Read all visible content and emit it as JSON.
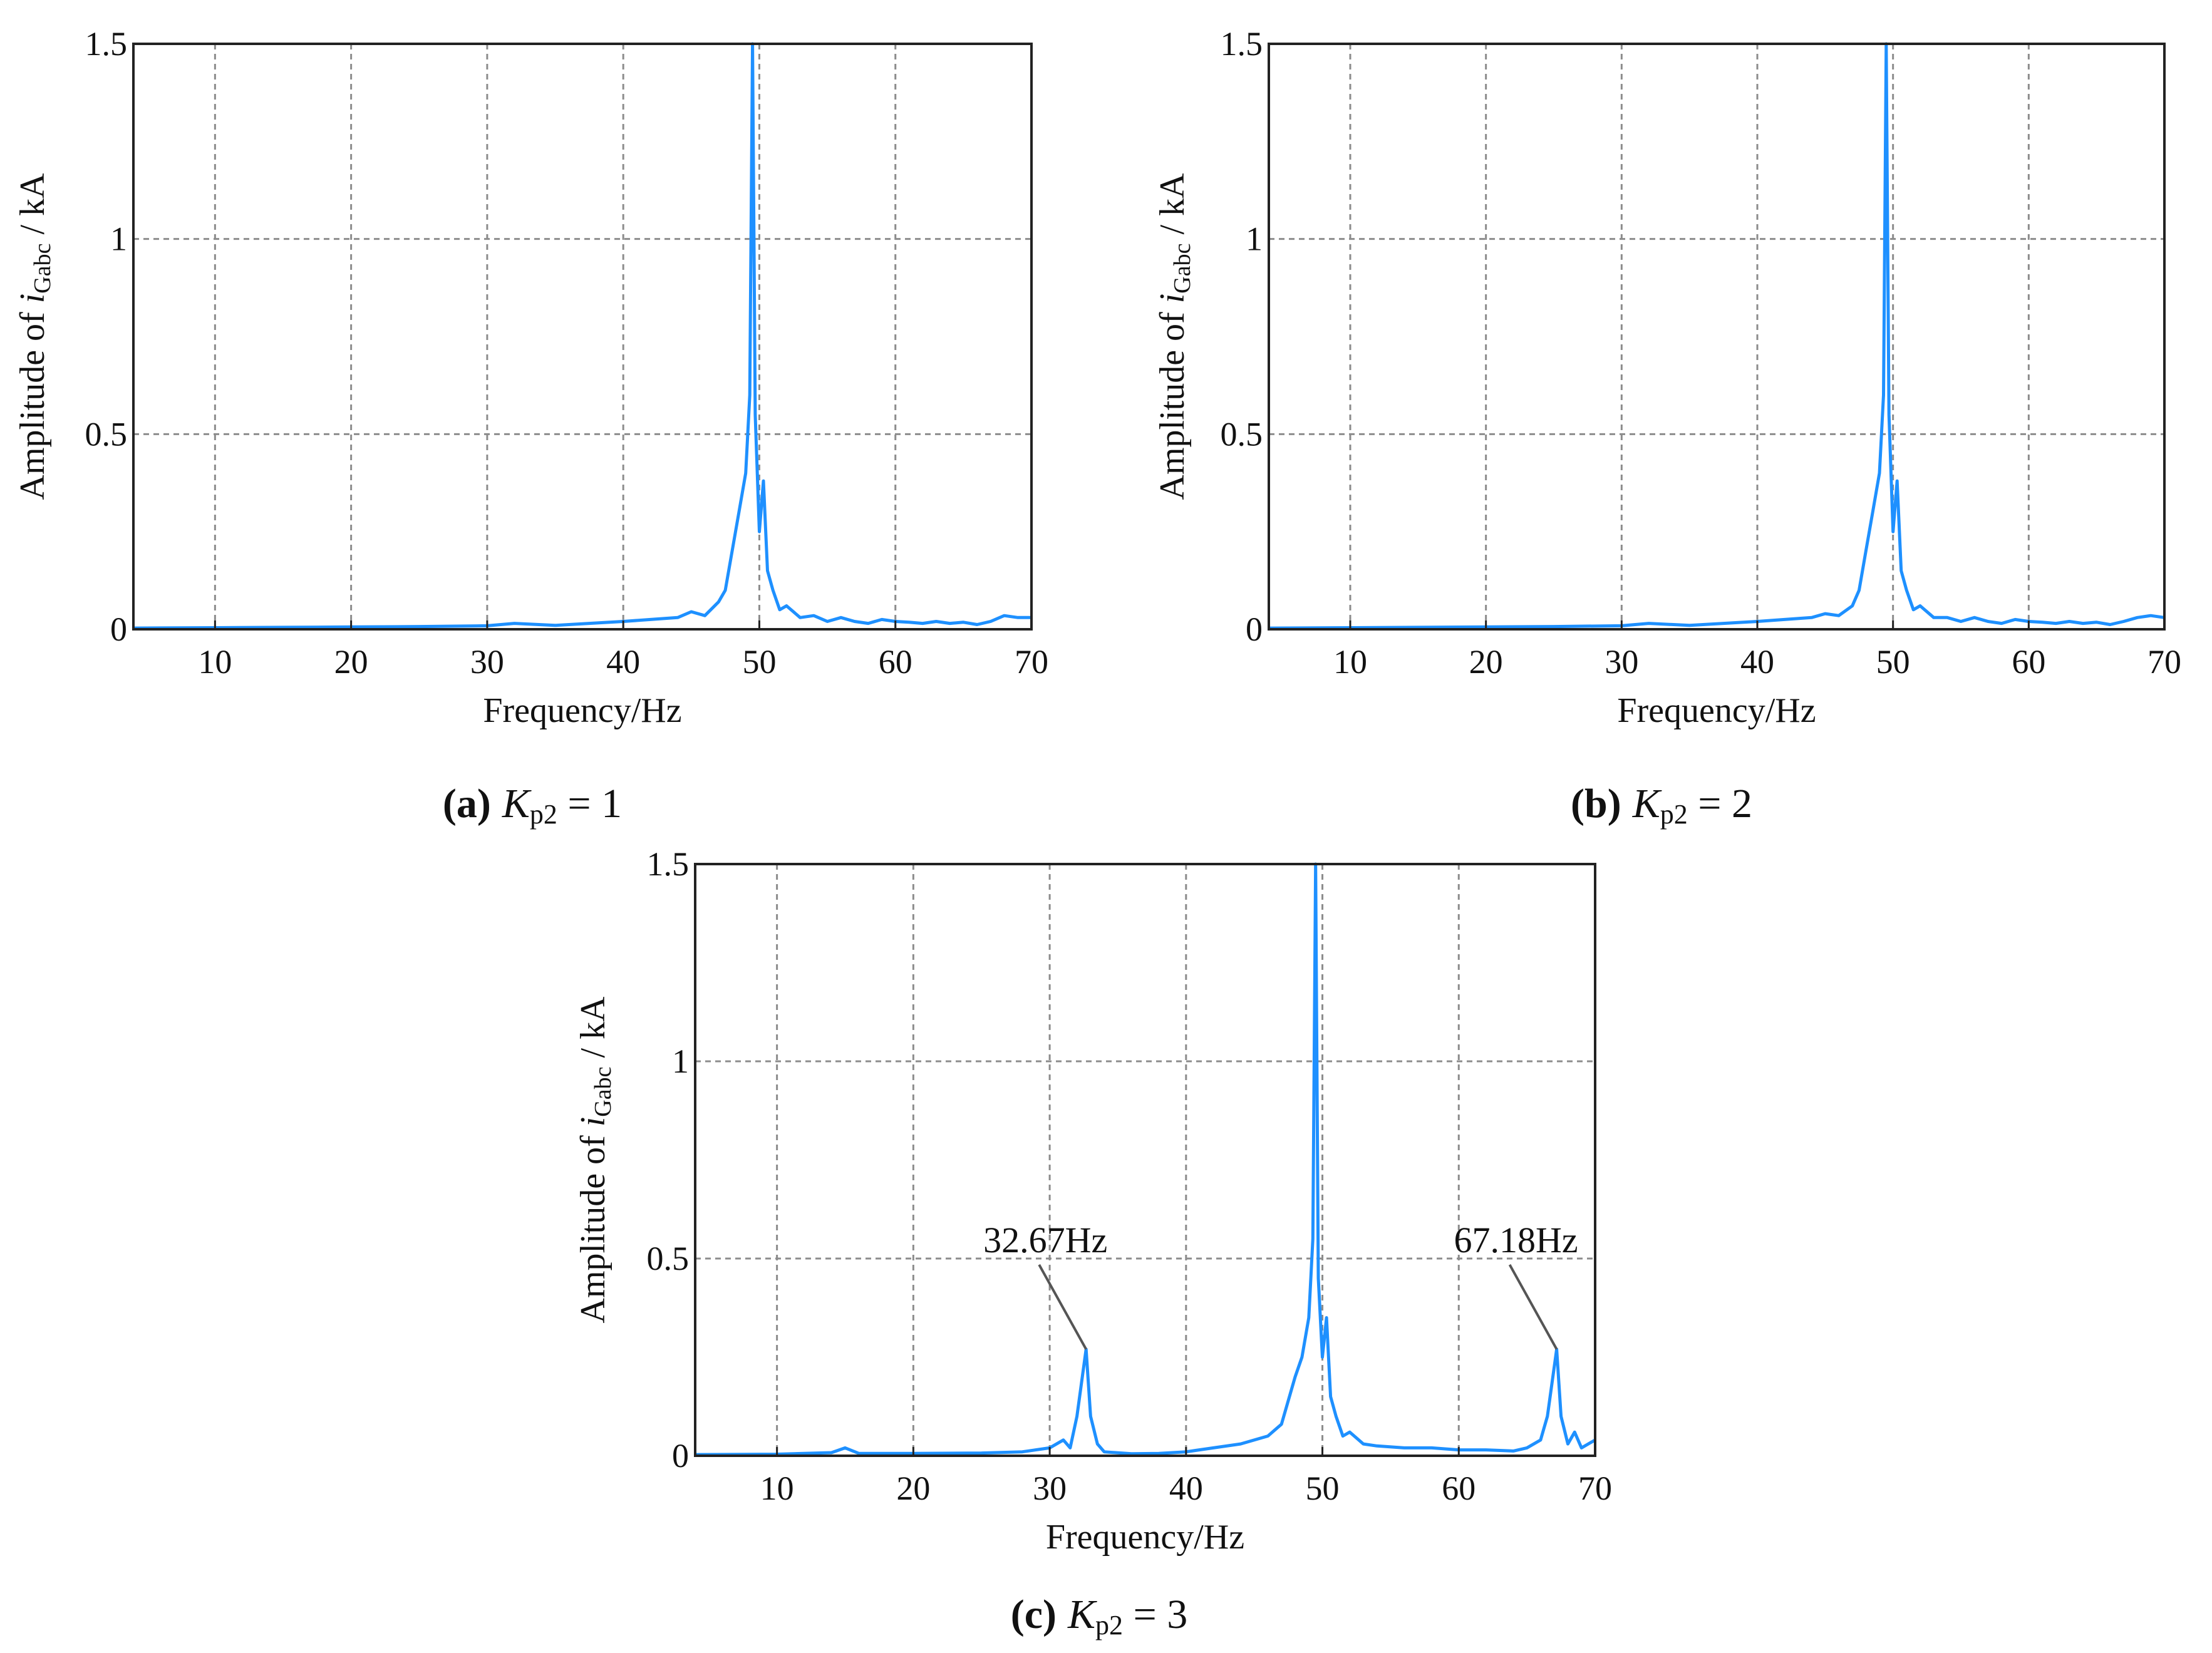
{
  "figure": {
    "colors": {
      "series": "#1e90ff",
      "grid": "#8c8c8c",
      "axis": "#222222",
      "leader": "#555555"
    },
    "panels": [
      {
        "caption": {
          "letter": "(a)",
          "symbol": "K",
          "sub": "p2",
          "rest": " = 1"
        },
        "ylabel": {
          "prefix": "Amplitude of ",
          "var": "i",
          "sub": "Gabc",
          "suffix": " / kA"
        },
        "xlabel": "Frequency/Hz",
        "xticks": [
          "10",
          "20",
          "30",
          "40",
          "50",
          "60",
          "70"
        ],
        "yticks": [
          "0",
          "0.5",
          "1",
          "1.5"
        ]
      },
      {
        "caption": {
          "letter": "(b)",
          "symbol": "K",
          "sub": "p2",
          "rest": " = 2"
        },
        "ylabel": {
          "prefix": "Amplitude of ",
          "var": "i",
          "sub": "Gabc",
          "suffix": " / kA"
        },
        "xlabel": "Frequency/Hz",
        "xticks": [
          "10",
          "20",
          "30",
          "40",
          "50",
          "60",
          "70"
        ],
        "yticks": [
          "0",
          "0.5",
          "1",
          "1.5"
        ]
      },
      {
        "caption": {
          "letter": "(c)",
          "symbol": "K",
          "sub": "p2",
          "rest": " = 3"
        },
        "ylabel": {
          "prefix": "Amplitude of ",
          "var": "i",
          "sub": "Gabc",
          "suffix": " / kA"
        },
        "xlabel": "Frequency/Hz",
        "xticks": [
          "10",
          "20",
          "30",
          "40",
          "50",
          "60",
          "70"
        ],
        "yticks": [
          "0",
          "0.5",
          "1",
          "1.5"
        ],
        "annotations": [
          {
            "text": "32.67Hz",
            "x": 32.67,
            "y": 0.27
          },
          {
            "text": "67.18Hz",
            "x": 67.18,
            "y": 0.27
          }
        ]
      }
    ]
  },
  "chart_data": [
    {
      "type": "line",
      "xlim": [
        4,
        70
      ],
      "ylim": [
        0,
        1.5
      ],
      "grid": true,
      "series": [
        {
          "x": [
            4,
            10,
            15,
            20,
            25,
            30,
            32,
            35,
            38,
            40,
            42,
            44,
            45,
            46,
            47,
            47.5,
            48,
            48.5,
            49,
            49.3,
            49.5,
            49.7,
            50,
            50.3,
            50.6,
            51,
            51.5,
            52,
            53,
            54,
            55,
            56,
            57,
            58,
            59,
            60,
            61,
            62,
            63,
            64,
            65,
            66,
            67,
            68,
            69,
            70
          ],
          "y": [
            0.003,
            0.004,
            0.005,
            0.006,
            0.007,
            0.009,
            0.015,
            0.01,
            0.016,
            0.02,
            0.025,
            0.03,
            0.045,
            0.035,
            0.07,
            0.1,
            0.2,
            0.3,
            0.4,
            0.6,
            1.5,
            0.55,
            0.25,
            0.38,
            0.15,
            0.1,
            0.05,
            0.06,
            0.03,
            0.035,
            0.02,
            0.03,
            0.02,
            0.015,
            0.025,
            0.02,
            0.018,
            0.015,
            0.02,
            0.015,
            0.018,
            0.012,
            0.02,
            0.035,
            0.03,
            0.03
          ]
        }
      ]
    },
    {
      "type": "line",
      "xlim": [
        4,
        70
      ],
      "ylim": [
        0,
        1.5
      ],
      "grid": true,
      "series": [
        {
          "x": [
            4,
            10,
            15,
            20,
            25,
            30,
            32,
            35,
            38,
            40,
            42,
            44,
            45,
            46,
            47,
            47.5,
            48,
            48.5,
            49,
            49.3,
            49.5,
            49.7,
            50,
            50.3,
            50.6,
            51,
            51.5,
            52,
            53,
            54,
            55,
            56,
            57,
            58,
            59,
            60,
            61,
            62,
            63,
            64,
            65,
            66,
            67,
            68,
            69,
            70
          ],
          "y": [
            0.003,
            0.004,
            0.005,
            0.006,
            0.007,
            0.009,
            0.015,
            0.01,
            0.016,
            0.02,
            0.025,
            0.03,
            0.04,
            0.035,
            0.06,
            0.1,
            0.2,
            0.3,
            0.4,
            0.6,
            1.5,
            0.55,
            0.25,
            0.38,
            0.15,
            0.1,
            0.05,
            0.06,
            0.03,
            0.03,
            0.02,
            0.03,
            0.02,
            0.015,
            0.025,
            0.02,
            0.018,
            0.015,
            0.02,
            0.015,
            0.018,
            0.012,
            0.02,
            0.03,
            0.035,
            0.03
          ]
        }
      ]
    },
    {
      "type": "line",
      "xlim": [
        4,
        70
      ],
      "ylim": [
        0,
        1.5
      ],
      "grid": true,
      "series": [
        {
          "x": [
            4,
            10,
            14,
            15,
            16,
            20,
            25,
            28,
            30,
            31,
            31.5,
            32,
            32.67,
            33,
            33.5,
            34,
            36,
            38,
            40,
            42,
            44,
            46,
            47,
            48,
            48.5,
            49,
            49.3,
            49.5,
            49.7,
            50,
            50.3,
            50.6,
            51,
            51.5,
            52,
            53,
            54,
            56,
            58,
            60,
            62,
            64,
            65,
            66,
            66.5,
            67.18,
            67.5,
            68,
            68.5,
            69,
            70
          ],
          "y": [
            0.003,
            0.004,
            0.008,
            0.02,
            0.006,
            0.006,
            0.007,
            0.01,
            0.02,
            0.04,
            0.02,
            0.1,
            0.27,
            0.1,
            0.03,
            0.01,
            0.005,
            0.006,
            0.01,
            0.02,
            0.03,
            0.05,
            0.08,
            0.2,
            0.25,
            0.35,
            0.55,
            1.5,
            0.45,
            0.25,
            0.35,
            0.15,
            0.1,
            0.05,
            0.06,
            0.03,
            0.025,
            0.02,
            0.02,
            0.015,
            0.015,
            0.012,
            0.02,
            0.04,
            0.1,
            0.27,
            0.1,
            0.03,
            0.06,
            0.02,
            0.04
          ]
        }
      ]
    }
  ]
}
